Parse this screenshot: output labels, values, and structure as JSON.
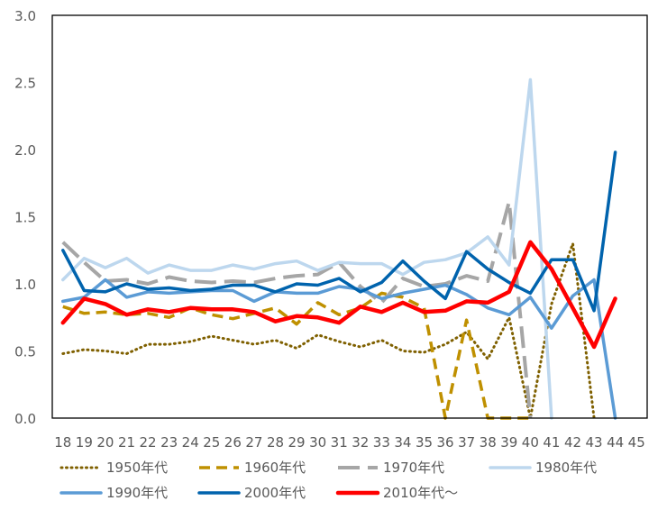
{
  "chart_data": {
    "type": "line",
    "title": "",
    "xlabel": "",
    "ylabel": "",
    "ylim": [
      0,
      3.0
    ],
    "y_ticks": [
      "0.0",
      "0.5",
      "1.0",
      "1.5",
      "2.0",
      "2.5",
      "3.0"
    ],
    "categories": [
      "18",
      "19",
      "20",
      "21",
      "22",
      "23",
      "24",
      "25",
      "26",
      "27",
      "28",
      "29",
      "30",
      "31",
      "32",
      "33",
      "34",
      "35",
      "36",
      "37",
      "38",
      "39",
      "40",
      "41",
      "42",
      "43",
      "44",
      "45"
    ],
    "grid": false,
    "legend_position": "bottom",
    "series": [
      {
        "name": "1950年代",
        "color": "#7f6000",
        "dash": "dot",
        "values": [
          0.48,
          0.51,
          0.5,
          0.48,
          0.55,
          0.55,
          0.57,
          0.61,
          0.58,
          0.55,
          0.58,
          0.52,
          0.62,
          0.57,
          0.53,
          0.58,
          0.5,
          0.49,
          0.55,
          0.64,
          0.44,
          0.75,
          0.0,
          0.85,
          1.3,
          0.0,
          null,
          null
        ]
      },
      {
        "name": "1960年代",
        "color": "#bf9000",
        "dash": "dash",
        "values": [
          0.83,
          0.78,
          0.79,
          0.77,
          0.78,
          0.75,
          0.82,
          0.77,
          0.74,
          0.78,
          0.82,
          0.7,
          0.86,
          0.77,
          0.82,
          0.93,
          0.9,
          0.82,
          0.0,
          0.73,
          0.0,
          0.0,
          0.0,
          null,
          null,
          null,
          null,
          null
        ]
      },
      {
        "name": "1970年代",
        "color": "#a6a6a6",
        "dash": "longdash",
        "values": [
          1.31,
          1.16,
          1.02,
          1.03,
          1.0,
          1.05,
          1.02,
          1.01,
          1.02,
          1.01,
          1.04,
          1.06,
          1.07,
          1.16,
          0.98,
          0.86,
          1.04,
          0.98,
          1.0,
          1.06,
          1.02,
          1.61,
          0.0,
          null,
          null,
          null,
          null,
          null
        ]
      },
      {
        "name": "1980年代",
        "color": "#bdd7ee",
        "dash": "solid",
        "values": [
          1.03,
          1.19,
          1.12,
          1.19,
          1.08,
          1.14,
          1.1,
          1.1,
          1.14,
          1.11,
          1.15,
          1.17,
          1.1,
          1.16,
          1.15,
          1.15,
          1.07,
          1.16,
          1.18,
          1.23,
          1.35,
          1.14,
          2.52,
          0.0,
          null,
          null,
          null,
          null
        ]
      },
      {
        "name": "1990年代",
        "color": "#5b9bd5",
        "dash": "solid",
        "values": [
          0.87,
          0.9,
          1.03,
          0.9,
          0.94,
          0.93,
          0.94,
          0.95,
          0.95,
          0.87,
          0.94,
          0.93,
          0.93,
          0.98,
          0.96,
          0.89,
          0.93,
          0.96,
          0.99,
          0.92,
          0.82,
          0.77,
          0.9,
          0.67,
          0.91,
          1.03,
          0.0,
          null
        ]
      },
      {
        "name": "2000年代",
        "color": "#0063ad",
        "dash": "solid",
        "values": [
          1.25,
          0.95,
          0.94,
          1.0,
          0.96,
          0.97,
          0.95,
          0.96,
          0.99,
          0.99,
          0.94,
          1.0,
          0.99,
          1.04,
          0.94,
          1.01,
          1.17,
          1.02,
          0.89,
          1.24,
          1.11,
          1.01,
          0.93,
          1.18,
          1.18,
          0.8,
          1.98,
          null
        ]
      },
      {
        "name": "2010年代～",
        "color": "#ff0000",
        "dash": "solid",
        "values": [
          0.71,
          0.89,
          0.85,
          0.77,
          0.81,
          0.79,
          0.82,
          0.81,
          0.81,
          0.79,
          0.72,
          0.76,
          0.75,
          0.71,
          0.83,
          0.79,
          0.86,
          0.79,
          0.8,
          0.87,
          0.86,
          0.94,
          1.31,
          1.11,
          0.82,
          0.53,
          0.89,
          null
        ]
      }
    ]
  }
}
